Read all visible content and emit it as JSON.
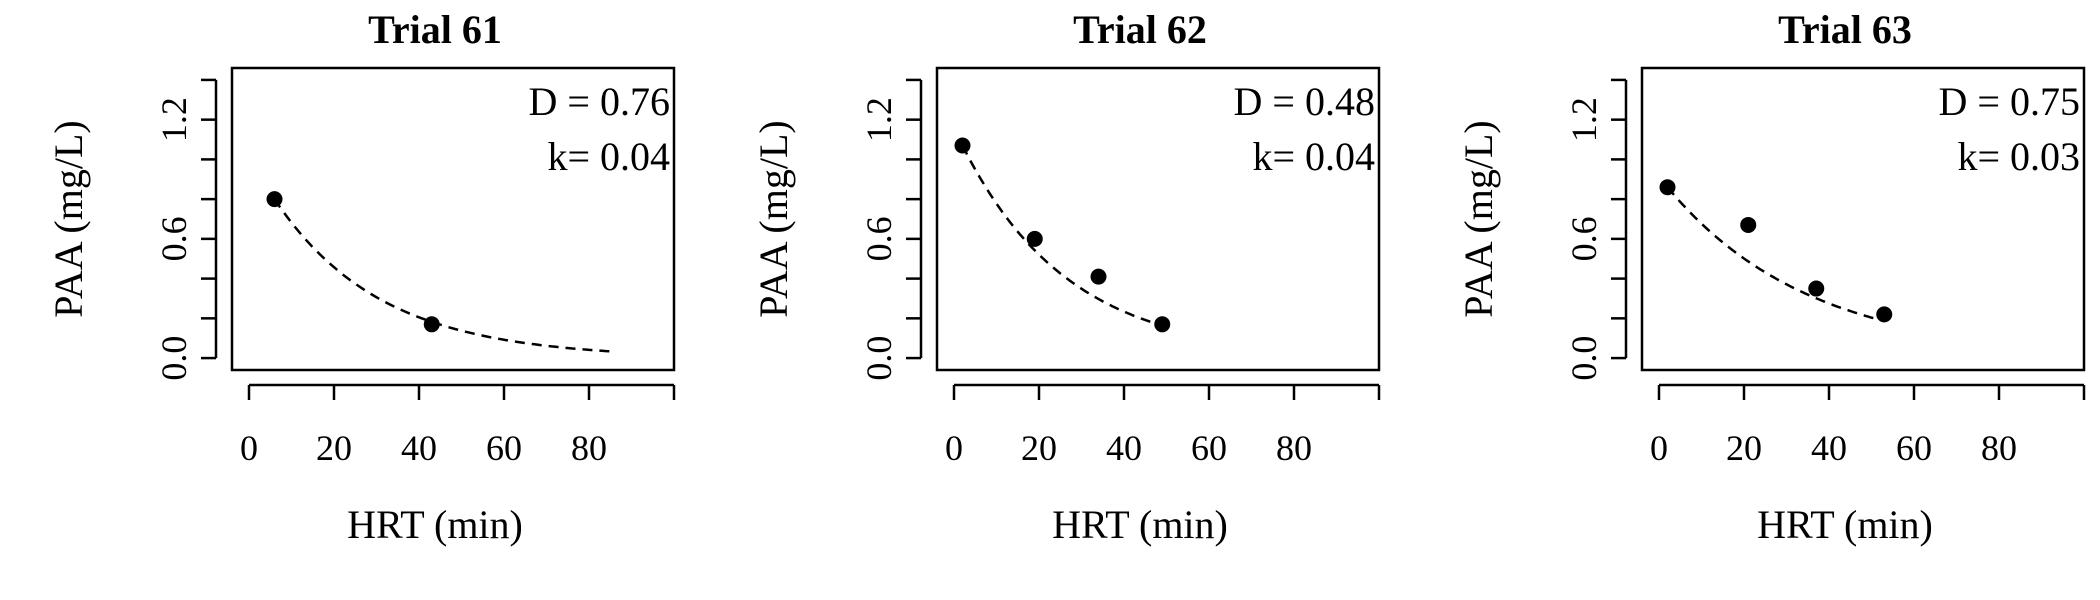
{
  "chart_data": [
    {
      "type": "scatter",
      "title": "Trial 61",
      "xlabel": "HRT (min)",
      "ylabel": "PAA (mg/L)",
      "xlim": [
        -4,
        100
      ],
      "ylim": [
        -0.06,
        1.46
      ],
      "xticks": [
        0,
        20,
        40,
        60,
        80
      ],
      "xtick_labels": [
        "0",
        "20",
        "40",
        "60",
        "80"
      ],
      "yticks": [
        0.0,
        0.6,
        1.2
      ],
      "ytick_labels": [
        "0.0",
        "0.6",
        "1.2"
      ],
      "annotations": [
        "D = 0.76",
        "k= 0.04"
      ],
      "points": {
        "x": [
          6,
          43
        ],
        "y": [
          0.8,
          0.17
        ]
      },
      "fit": {
        "D": 0.76,
        "k": 0.04,
        "x_range": [
          6,
          85
        ]
      }
    },
    {
      "type": "scatter",
      "title": "Trial 62",
      "xlabel": "HRT (min)",
      "ylabel": "PAA (mg/L)",
      "xlim": [
        -4,
        100
      ],
      "ylim": [
        -0.06,
        1.46
      ],
      "xticks": [
        0,
        20,
        40,
        60,
        80
      ],
      "xtick_labels": [
        "0",
        "20",
        "40",
        "60",
        "80"
      ],
      "yticks": [
        0.0,
        0.6,
        1.2
      ],
      "ytick_labels": [
        "0.0",
        "0.6",
        "1.2"
      ],
      "annotations": [
        "D = 0.48",
        "k= 0.04"
      ],
      "points": {
        "x": [
          2,
          19,
          34,
          49
        ],
        "y": [
          1.07,
          0.6,
          0.41,
          0.17
        ]
      },
      "fit": {
        "D": 0.48,
        "k": 0.04,
        "x_range": [
          2,
          49
        ]
      }
    },
    {
      "type": "scatter",
      "title": "Trial 63",
      "xlabel": "HRT (min)",
      "ylabel": "PAA (mg/L)",
      "xlim": [
        -4,
        100
      ],
      "ylim": [
        -0.06,
        1.46
      ],
      "xticks": [
        0,
        20,
        40,
        60,
        80
      ],
      "xtick_labels": [
        "0",
        "20",
        "40",
        "60",
        "80"
      ],
      "yticks": [
        0.0,
        0.6,
        1.2
      ],
      "ytick_labels": [
        "0.0",
        "0.6",
        "1.2"
      ],
      "annotations": [
        "D = 0.75",
        "k= 0.03"
      ],
      "points": {
        "x": [
          2,
          21,
          37,
          53
        ],
        "y": [
          0.86,
          0.67,
          0.35,
          0.22
        ]
      },
      "fit": {
        "D": 0.75,
        "k": 0.03,
        "x_range": [
          2,
          53
        ]
      }
    }
  ]
}
